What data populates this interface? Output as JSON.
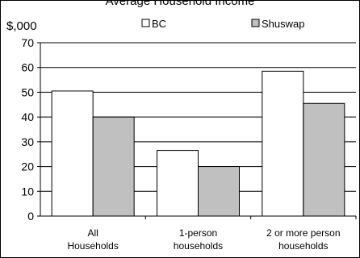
{
  "chart_data": {
    "type": "bar",
    "title": "Average Household Income",
    "ylabel": "$,000",
    "xlabel": "",
    "categories": [
      [
        "All",
        "Households"
      ],
      [
        "1-person",
        "households"
      ],
      [
        "2 or more person",
        "households"
      ]
    ],
    "series": [
      {
        "name": "BC",
        "color": "#ffffff",
        "values": [
          50.5,
          26.5,
          58.5
        ]
      },
      {
        "name": "Shuswap",
        "color": "#c0c0c0",
        "values": [
          40,
          20,
          45.5
        ]
      }
    ],
    "ylim": [
      0,
      70
    ],
    "yticks": [
      0,
      10,
      20,
      30,
      40,
      50,
      60,
      70
    ],
    "grid": true,
    "legend_position": "top"
  }
}
